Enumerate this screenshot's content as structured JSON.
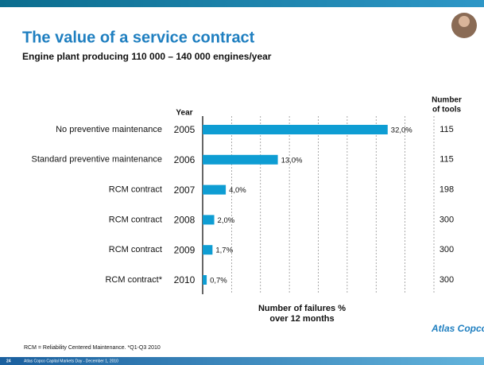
{
  "header": {
    "title": "The value of a service contract",
    "subtitle": "Engine plant producing 110 000 – 140 000 engines/year"
  },
  "chart_data": {
    "type": "bar",
    "orientation": "horizontal",
    "categories": [
      "No preventive maintenance",
      "Standard preventive maintenance",
      "RCM contract",
      "RCM contract",
      "RCM contract",
      "RCM contract*"
    ],
    "years": [
      2005,
      2006,
      2007,
      2008,
      2009,
      2010
    ],
    "values": [
      32,
      13,
      4,
      2,
      1.7,
      0.7
    ],
    "value_labels": [
      "32,0%",
      "13,0%",
      "4,0%",
      "2,0%",
      "1,7%",
      "0,7%"
    ],
    "tools": [
      115,
      115,
      198,
      300,
      300,
      300
    ],
    "year_label": "Year",
    "tools_label": [
      "Number",
      "of tools"
    ],
    "xlabel": [
      "Number of failures %",
      "over 12 months"
    ],
    "color": "#0e9dd3",
    "xlim": [
      0,
      40
    ],
    "xticks": [
      5,
      10,
      15,
      20,
      25,
      30,
      35,
      40
    ],
    "grid": true
  },
  "footnote": "RCM = Reliability Centered Maintenance.  *Q1-Q3 2010",
  "footer": {
    "page_number": "24",
    "text": "Atlas Copco Capital Markets Day - December 1, 2010"
  },
  "logo": "Atlas Copco"
}
